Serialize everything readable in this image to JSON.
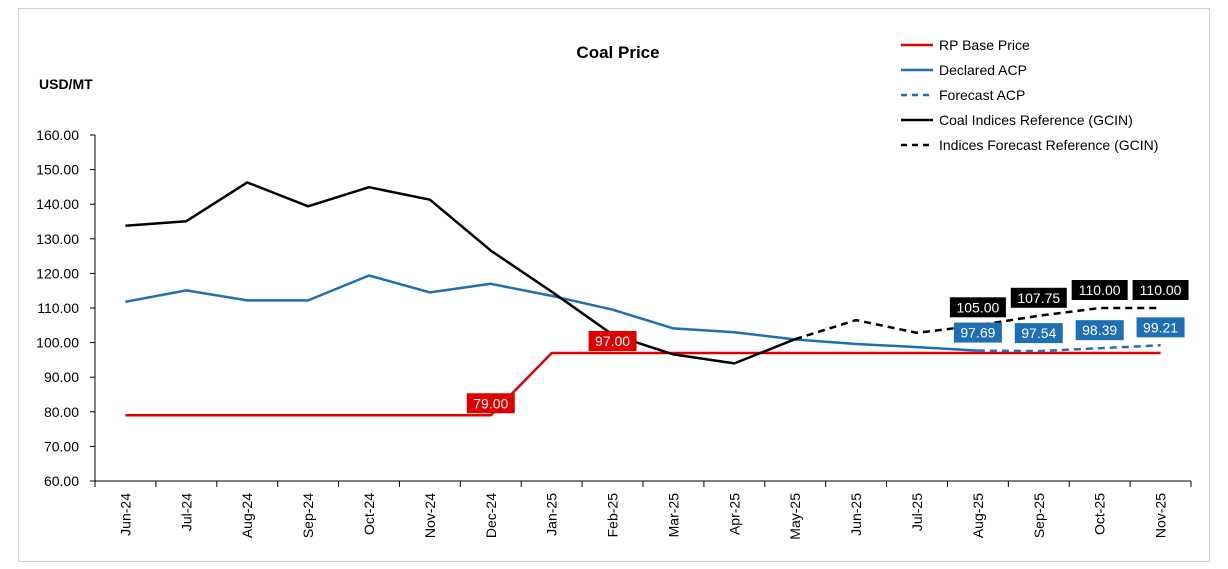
{
  "chart_data": {
    "type": "line",
    "title": "Coal Price",
    "ylabel": "USD/MT",
    "xlabel": "",
    "ylim": [
      60,
      160
    ],
    "yticks": [
      "60.00",
      "70.00",
      "80.00",
      "90.00",
      "100.00",
      "110.00",
      "120.00",
      "130.00",
      "140.00",
      "150.00",
      "160.00"
    ],
    "categories": [
      "Jun-24",
      "Jul-24",
      "Aug-24",
      "Sep-24",
      "Oct-24",
      "Nov-24",
      "Dec-24",
      "Jan-25",
      "Feb-25",
      "Mar-25",
      "Apr-25",
      "May-25",
      "Jun-25",
      "Jul-25",
      "Aug-25",
      "Sep-25",
      "Oct-25",
      "Nov-25"
    ],
    "grid": false,
    "legend_position": "top-right",
    "series": [
      {
        "name": "RP Base Price",
        "color": "#e00000",
        "dash": false,
        "values": [
          79,
          79,
          79,
          79,
          79,
          79,
          79,
          97,
          97,
          97,
          97,
          97,
          97,
          97,
          97,
          97,
          97,
          97
        ]
      },
      {
        "name": "Declared ACP",
        "color": "#1f6fb4",
        "dash": false,
        "values": [
          111.8,
          115.1,
          112.2,
          112.2,
          119.4,
          114.5,
          117.0,
          113.5,
          109.5,
          104.1,
          103.0,
          100.9,
          99.6,
          98.7,
          97.69,
          null,
          null,
          null
        ]
      },
      {
        "name": "Forecast ACP",
        "color": "#1f6fb4",
        "dash": true,
        "values": [
          null,
          null,
          null,
          null,
          null,
          null,
          null,
          null,
          null,
          null,
          null,
          null,
          null,
          null,
          97.69,
          97.54,
          98.39,
          99.21
        ]
      },
      {
        "name": "Coal Indices Reference (GCIN)",
        "color": "#000000",
        "dash": false,
        "values": [
          133.8,
          135.1,
          146.3,
          139.4,
          144.9,
          141.3,
          126.6,
          114.7,
          102.3,
          96.6,
          94.0,
          101.0,
          null,
          null,
          null,
          null,
          null,
          null
        ]
      },
      {
        "name": "Indices Forecast Reference (GCIN)",
        "color": "#000000",
        "dash": true,
        "values": [
          null,
          null,
          null,
          null,
          null,
          null,
          null,
          null,
          null,
          null,
          null,
          101.0,
          106.5,
          102.8,
          105.0,
          107.75,
          110.0,
          110.0
        ]
      }
    ],
    "data_labels": [
      {
        "series": "RP Base Price",
        "category": "Dec-24",
        "text": "79.00",
        "bg": "#e00000"
      },
      {
        "series": "RP Base Price",
        "category": "Feb-25",
        "text": "97.00",
        "bg": "#e00000"
      },
      {
        "series": "Forecast ACP",
        "category": "Aug-25",
        "text": "97.69",
        "bg": "#1f6fb4"
      },
      {
        "series": "Forecast ACP",
        "category": "Sep-25",
        "text": "97.54",
        "bg": "#1f6fb4"
      },
      {
        "series": "Forecast ACP",
        "category": "Oct-25",
        "text": "98.39",
        "bg": "#1f6fb4"
      },
      {
        "series": "Forecast ACP",
        "category": "Nov-25",
        "text": "99.21",
        "bg": "#1f6fb4"
      },
      {
        "series": "Indices Forecast Reference (GCIN)",
        "category": "Aug-25",
        "text": "105.00",
        "bg": "#000000"
      },
      {
        "series": "Indices Forecast Reference (GCIN)",
        "category": "Sep-25",
        "text": "107.75",
        "bg": "#000000"
      },
      {
        "series": "Indices Forecast Reference (GCIN)",
        "category": "Oct-25",
        "text": "110.00",
        "bg": "#000000"
      },
      {
        "series": "Indices Forecast Reference (GCIN)",
        "category": "Nov-25",
        "text": "110.00",
        "bg": "#000000"
      }
    ]
  }
}
